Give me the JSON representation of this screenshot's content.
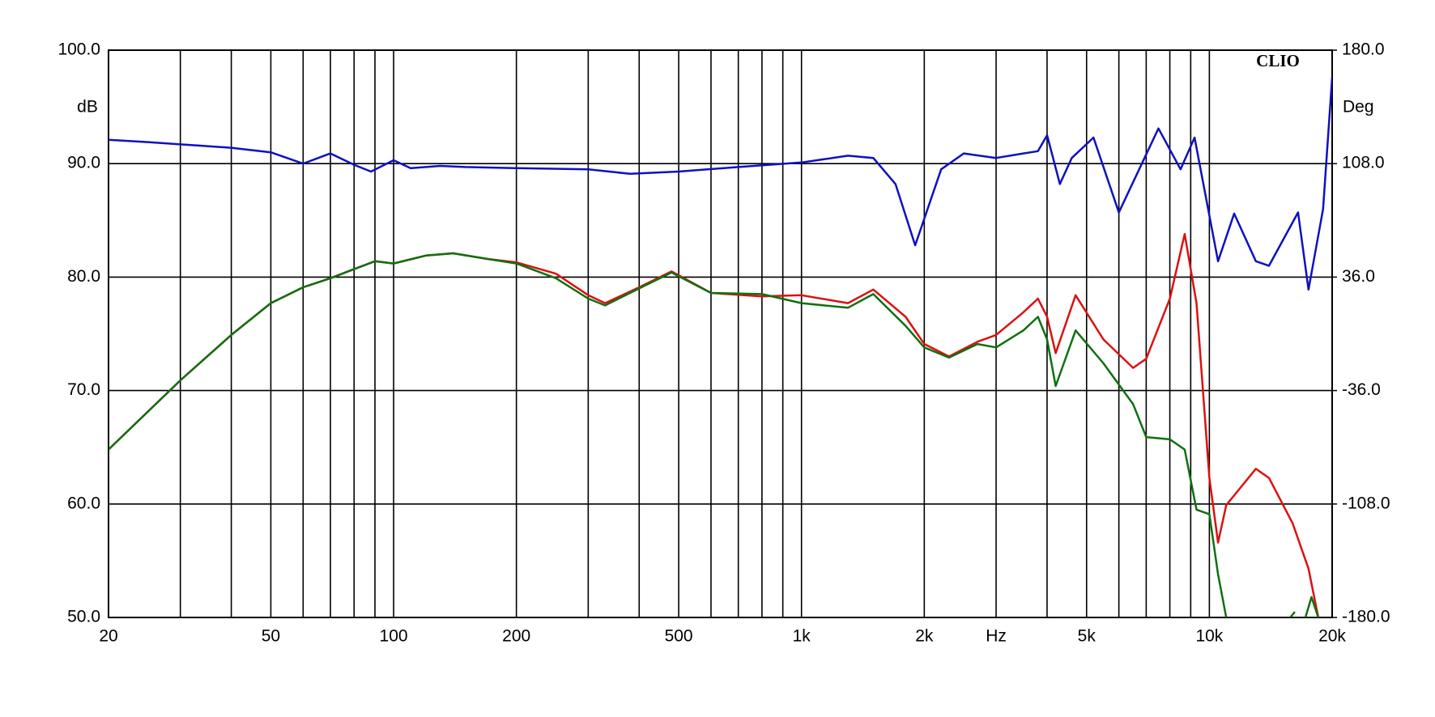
{
  "chart_data": {
    "type": "line",
    "annotation": "CLIO",
    "ylabel": "dB",
    "y2label": "Deg",
    "xscale": "log",
    "grid": true,
    "xlim": [
      20,
      20000
    ],
    "xticks": [
      20,
      50,
      100,
      200,
      500,
      {
        "value": 1000,
        "label": "1k"
      },
      {
        "value": 2000,
        "label": "2k"
      },
      {
        "value": 3000,
        "label": "Hz"
      },
      {
        "value": 5000,
        "label": "5k"
      },
      {
        "value": 10000,
        "label": "10k"
      },
      {
        "value": 20000,
        "label": "20k"
      }
    ],
    "x_grid": [
      30,
      40,
      60,
      70,
      80,
      90,
      300,
      400,
      600,
      700,
      800,
      900,
      4000,
      6000,
      7000,
      8000,
      9000
    ],
    "ylim": [
      50,
      100
    ],
    "yticks": [
      {
        "value": 100,
        "label": "100.0"
      },
      {
        "value": 90,
        "label": "90.0"
      },
      {
        "value": 80,
        "label": "80.0"
      },
      {
        "value": 70,
        "label": "70.0"
      },
      {
        "value": 60,
        "label": "60.0"
      },
      {
        "value": 50,
        "label": "50.0"
      }
    ],
    "y2lim": [
      -180,
      180
    ],
    "y2ticks": [
      {
        "value": 180,
        "label": "180.0"
      },
      {
        "value": 108,
        "label": "108.0"
      },
      {
        "value": 36,
        "label": "36.0"
      },
      {
        "value": -36,
        "label": "-36.0"
      },
      {
        "value": -108,
        "label": "-108.0"
      },
      {
        "value": -180,
        "label": "-180.0"
      }
    ],
    "series": [
      {
        "color": "#1010c0",
        "x": [
          20,
          25,
          30,
          40,
          50,
          60,
          70,
          80,
          88,
          100,
          110,
          130,
          150,
          200,
          300,
          380,
          500,
          700,
          1000,
          1300,
          1500,
          1700,
          1900,
          2200,
          2500,
          3000,
          3500,
          3800,
          4000,
          4300,
          4600,
          5200,
          6000,
          7500,
          8500,
          9200,
          10500,
          11500,
          13000,
          14000,
          16500,
          17500,
          19000,
          20000
        ],
        "values": [
          92.1,
          91.9,
          91.7,
          91.4,
          91.0,
          90.0,
          90.9,
          89.9,
          89.3,
          90.3,
          89.6,
          89.8,
          89.7,
          89.6,
          89.5,
          89.1,
          89.3,
          89.7,
          90.1,
          90.7,
          90.5,
          88.2,
          82.8,
          89.5,
          90.9,
          90.5,
          90.9,
          91.1,
          92.5,
          88.2,
          90.5,
          92.3,
          85.7,
          93.1,
          89.5,
          92.3,
          81.4,
          85.6,
          81.4,
          81.0,
          85.7,
          78.9,
          86.0,
          97.6
        ]
      },
      {
        "color": "#dd1010",
        "x": [
          20,
          30,
          40,
          50,
          60,
          70,
          80,
          90,
          100,
          120,
          140,
          170,
          200,
          250,
          300,
          330,
          400,
          480,
          600,
          800,
          1000,
          1300,
          1500,
          1800,
          2000,
          2300,
          2700,
          3000,
          3500,
          3800,
          4000,
          4200,
          4700,
          5500,
          6500,
          7000,
          8000,
          8700,
          9300,
          10000,
          10500,
          11000,
          13000,
          14000,
          16000,
          17500,
          18500
        ],
        "values": [
          64.8,
          70.9,
          74.9,
          77.7,
          79.1,
          79.9,
          80.7,
          81.4,
          81.2,
          81.9,
          82.1,
          81.6,
          81.3,
          80.3,
          78.4,
          77.7,
          79.1,
          80.5,
          78.6,
          78.3,
          78.4,
          77.7,
          78.9,
          76.5,
          74.1,
          73.0,
          74.3,
          74.9,
          76.9,
          78.1,
          76.5,
          73.3,
          78.4,
          74.5,
          72.0,
          72.8,
          78.1,
          83.8,
          77.7,
          62.3,
          56.6,
          59.9,
          63.1,
          62.3,
          58.3,
          54.3,
          50
        ]
      },
      {
        "color": "#107010",
        "x": [
          20,
          30,
          40,
          50,
          60,
          70,
          80,
          90,
          100,
          120,
          140,
          170,
          200,
          250,
          300,
          330,
          400,
          480,
          600,
          800,
          1000,
          1300,
          1500,
          1800,
          2000,
          2300,
          2700,
          3000,
          3500,
          3800,
          4000,
          4200,
          4700,
          5500,
          6500,
          7000,
          8000,
          8700,
          9300,
          10000,
          10500,
          11000,
          14000,
          15800,
          16200,
          17000,
          17200,
          17800,
          18500
        ],
        "values": [
          64.8,
          70.9,
          74.9,
          77.7,
          79.1,
          79.9,
          80.7,
          81.4,
          81.2,
          81.9,
          82.1,
          81.6,
          81.2,
          79.9,
          78.1,
          77.5,
          79.0,
          80.4,
          78.6,
          78.5,
          77.7,
          77.3,
          78.5,
          75.7,
          73.8,
          72.9,
          74.1,
          73.8,
          75.3,
          76.5,
          74.5,
          70.4,
          75.3,
          72.4,
          68.8,
          65.9,
          65.7,
          64.8,
          59.5,
          59.1,
          53.8,
          50,
          null,
          50,
          50.5,
          null,
          50,
          51.8,
          50
        ]
      }
    ]
  }
}
